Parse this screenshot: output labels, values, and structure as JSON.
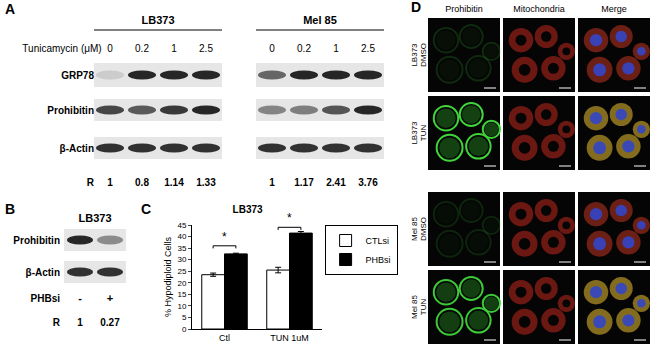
{
  "panels": {
    "A": {
      "letter": "A",
      "treatment_label": "Tunicamycin (μM)",
      "ratio_label": "R",
      "rows": [
        "GRP78",
        "Prohibitin",
        "β-Actin"
      ],
      "blots": [
        {
          "title": "LB373",
          "doses": [
            0,
            0.2,
            1,
            2.5
          ],
          "ratios": [
            1,
            0.8,
            1.14,
            1.33
          ]
        },
        {
          "title": "Mel 85",
          "doses": [
            0,
            0.2,
            1,
            2.5
          ],
          "ratios": [
            1,
            1.17,
            2.41,
            3.76
          ]
        }
      ]
    },
    "B": {
      "letter": "B",
      "title": "LB373",
      "rows": [
        "Prohibitin",
        "β-Actin"
      ],
      "treatment_label": "PHBsi",
      "lanes": [
        "-",
        "+"
      ],
      "ratio_label": "R",
      "ratios": [
        1,
        0.27
      ]
    },
    "C": {
      "letter": "C"
    },
    "D": {
      "letter": "D",
      "columns": [
        "Prohibitin",
        "Mitochondria",
        "Merge"
      ],
      "rows": [
        [
          "LB373",
          "DMSO"
        ],
        [
          "LB373",
          "TUN"
        ],
        [
          "Mel 85",
          "DMSO"
        ],
        [
          "Mel 85",
          "TUN"
        ]
      ]
    }
  },
  "chart_data": {
    "type": "bar",
    "title": "LB373",
    "y_label": "% Hypodiploid Cells",
    "categories": [
      "Ctl",
      "TUN 1uM"
    ],
    "series": [
      {
        "name": "CTLsi",
        "color": "#ffffff",
        "values": [
          23.5,
          25.5
        ],
        "errors": [
          0.7,
          1.2
        ]
      },
      {
        "name": "PHBsi",
        "color": "#000000",
        "values": [
          32.5,
          41.5
        ],
        "errors": [
          0.3,
          0.7
        ]
      }
    ],
    "ylim": [
      0,
      45
    ],
    "yticks": [
      0,
      5,
      10,
      15,
      20,
      25,
      30,
      35,
      40,
      45
    ],
    "legend": "upper right",
    "significance": [
      {
        "category": "Ctl",
        "label": "*",
        "y": 36
      },
      {
        "category": "TUN 1uM",
        "label": "*",
        "y": 44
      }
    ]
  }
}
